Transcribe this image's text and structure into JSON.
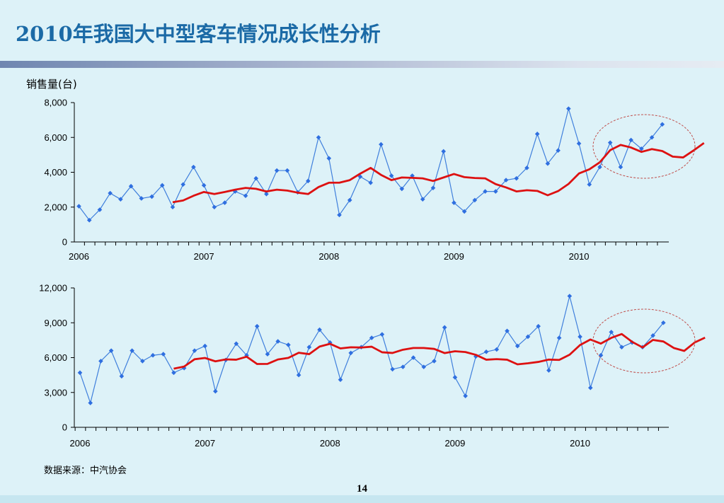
{
  "slide": {
    "title": "2010年我国大中型客车情况成长性分析",
    "unit_label": "销售量(台)",
    "source": "数据来源：中汽协会",
    "page_number": "14"
  },
  "colors": {
    "title": "#1b6aa6",
    "series_line": "#3f7fdc",
    "series_marker": "#2f6fe0",
    "trend_line": "#dd1111",
    "highlight_ellipse": "#c0504d",
    "background": "#ddf2f8"
  },
  "chart_data": [
    {
      "type": "line",
      "title": "",
      "ylabel": "销售量(台)",
      "ylim": [
        0,
        8000
      ],
      "y_ticks": [
        "0",
        "2,000",
        "4,000",
        "6,000",
        "8,000"
      ],
      "y_tick_values": [
        0,
        2000,
        4000,
        6000,
        8000
      ],
      "x_tick_labels": [
        "2006",
        "2007",
        "2008",
        "2009",
        "2010"
      ],
      "x_domain": [
        0,
        47
      ],
      "grid": false,
      "legend": "none",
      "series": [
        {
          "values": [
            2050,
            1250,
            1850,
            2800,
            2450,
            3200,
            2500,
            2600,
            3250,
            2000,
            3300,
            4300,
            3250,
            2000,
            2250,
            2900,
            2650,
            3650,
            2750,
            4100,
            4100,
            2850,
            3500,
            6000,
            4800,
            1550,
            2400,
            3750,
            3400,
            5600,
            3800,
            3050,
            3800,
            2450,
            3100,
            5200,
            2250,
            1750,
            2400,
            2900,
            2900,
            3550,
            3650,
            4250,
            6200,
            4500,
            5250,
            7650,
            5650,
            3300,
            4300,
            5700,
            4300,
            5850,
            5350,
            6000,
            6750
          ]
        },
        {
          "start_index": 9,
          "values": [
            2280,
            2380,
            2650,
            2870,
            2750,
            2870,
            3000,
            3100,
            3050,
            2900,
            3000,
            2950,
            2830,
            2750,
            3150,
            3400,
            3400,
            3550,
            3920,
            4250,
            3850,
            3550,
            3700,
            3680,
            3650,
            3500,
            3700,
            3900,
            3720,
            3670,
            3650,
            3320,
            3130,
            2900,
            2970,
            2930,
            2680,
            2920,
            3330,
            3930,
            4170,
            4570,
            5270,
            5570,
            5420,
            5170,
            5330,
            5220,
            4900,
            4850,
            5250,
            5680
          ]
        }
      ]
    },
    {
      "type": "line",
      "title": "",
      "ylabel": "",
      "ylim": [
        0,
        12000
      ],
      "y_ticks": [
        "0",
        "3,000",
        "6,000",
        "9,000",
        "12,000"
      ],
      "y_tick_values": [
        0,
        3000,
        6000,
        9000,
        12000
      ],
      "x_tick_labels": [
        "2006",
        "2007",
        "2008",
        "2009",
        "2010"
      ],
      "x_domain": [
        0,
        47
      ],
      "grid": false,
      "legend": "none",
      "series": [
        {
          "values": [
            4700,
            2100,
            5700,
            6600,
            4400,
            6600,
            5700,
            6200,
            6300,
            4700,
            5100,
            6600,
            7000,
            3100,
            5800,
            7200,
            6200,
            8700,
            6300,
            7400,
            7100,
            4500,
            6900,
            8400,
            7300,
            4100,
            6400,
            6900,
            7700,
            8000,
            5000,
            5200,
            6000,
            5200,
            5700,
            8600,
            4300,
            2700,
            6100,
            6500,
            6700,
            8300,
            7000,
            7800,
            8700,
            4900,
            7700,
            11300,
            7800,
            3400,
            6200,
            8200,
            6900,
            7300,
            6900,
            7900,
            9000
          ]
        },
        {
          "start_index": 9,
          "values": [
            5050,
            5230,
            5860,
            5970,
            5680,
            5850,
            5820,
            6080,
            5450,
            5460,
            5840,
            5980,
            6420,
            6300,
            6950,
            7190,
            6790,
            6890,
            6870,
            6940,
            6460,
            6400,
            6680,
            6830,
            6830,
            6750,
            6390,
            6550,
            6480,
            6240,
            5820,
            5870,
            5820,
            5420,
            5510,
            5630,
            5830,
            5800,
            6250,
            7080,
            7560,
            7210,
            7700,
            8030,
            7360,
            6880,
            7520,
            7390,
            6830,
            6580,
            7300,
            7720
          ]
        }
      ]
    }
  ]
}
